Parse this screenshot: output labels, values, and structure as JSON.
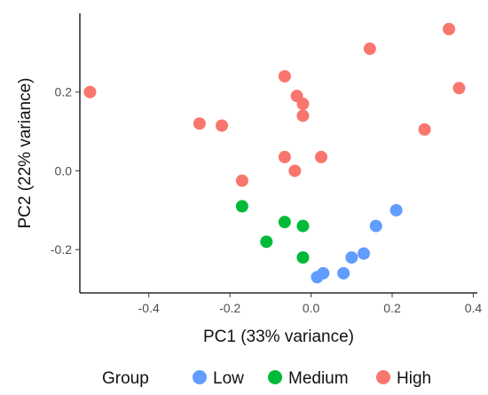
{
  "chart_data": {
    "type": "scatter",
    "xlabel": "PC1 (33% variance)",
    "ylabel": "PC2 (22% variance)",
    "xlim": [
      -0.57,
      0.41
    ],
    "ylim": [
      -0.31,
      0.4
    ],
    "x_ticks": [
      -0.4,
      -0.2,
      0.0,
      0.2,
      0.4
    ],
    "x_tick_labels": [
      "-0.4",
      "-0.2",
      "0.0",
      "0.2",
      "0.4"
    ],
    "y_ticks": [
      -0.2,
      0.0,
      0.2
    ],
    "y_tick_labels": [
      "-0.2",
      "0.0",
      "0.2"
    ],
    "grid": false,
    "legend": {
      "title": "Group",
      "position": "bottom",
      "entries": [
        "Low",
        "Medium",
        "High"
      ]
    },
    "series": [
      {
        "name": "Low",
        "color": "#619cff",
        "points": [
          [
            0.21,
            -0.1
          ],
          [
            0.16,
            -0.14
          ],
          [
            0.13,
            -0.21
          ],
          [
            0.1,
            -0.22
          ],
          [
            0.08,
            -0.26
          ],
          [
            0.03,
            -0.26
          ],
          [
            0.015,
            -0.27
          ]
        ]
      },
      {
        "name": "Medium",
        "color": "#00ba38",
        "points": [
          [
            -0.17,
            -0.09
          ],
          [
            -0.11,
            -0.18
          ],
          [
            -0.065,
            -0.13
          ],
          [
            -0.02,
            -0.14
          ],
          [
            -0.02,
            -0.22
          ]
        ]
      },
      {
        "name": "High",
        "color": "#f8766d",
        "points": [
          [
            -0.545,
            0.2
          ],
          [
            -0.275,
            0.12
          ],
          [
            -0.22,
            0.115
          ],
          [
            -0.17,
            -0.025
          ],
          [
            -0.065,
            0.24
          ],
          [
            -0.035,
            0.19
          ],
          [
            -0.02,
            0.17
          ],
          [
            -0.02,
            0.14
          ],
          [
            -0.065,
            0.035
          ],
          [
            -0.04,
            0.0
          ],
          [
            0.025,
            0.035
          ],
          [
            0.145,
            0.31
          ],
          [
            0.34,
            0.36
          ],
          [
            0.365,
            0.21
          ],
          [
            0.28,
            0.105
          ]
        ]
      }
    ]
  }
}
